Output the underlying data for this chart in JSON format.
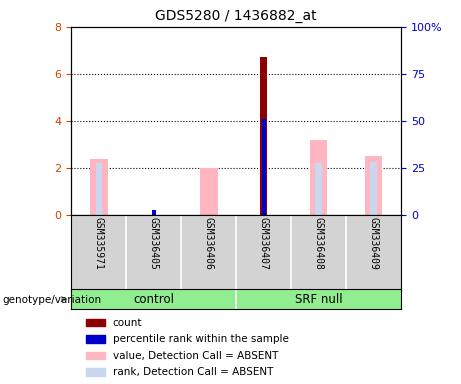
{
  "title": "GDS5280 / 1436882_at",
  "samples": [
    "GSM335971",
    "GSM336405",
    "GSM336406",
    "GSM336407",
    "GSM336408",
    "GSM336409"
  ],
  "count_values": [
    0,
    0,
    0,
    6.7,
    0,
    0
  ],
  "percentile_values": [
    0,
    0.2,
    0,
    4.1,
    0,
    0
  ],
  "pink_values": [
    2.4,
    0,
    2.0,
    0,
    3.2,
    2.5
  ],
  "blue_values": [
    2.2,
    0,
    0,
    0,
    2.2,
    2.25
  ],
  "count_color": "#8B0000",
  "percentile_color": "#0000CC",
  "pink_color": "#FFB6C1",
  "blue_color": "#C8D8F0",
  "ylim": [
    0,
    8
  ],
  "yticks": [
    0,
    2,
    4,
    6,
    8
  ],
  "y2ticks": [
    0,
    25,
    50,
    75,
    100
  ],
  "y2ticklabels": [
    "0",
    "25",
    "50",
    "75",
    "100%"
  ],
  "ytick_color": "#CC4400",
  "y2tick_color": "#0000CC",
  "bg_color": "#D3D3D3",
  "group_color": "#90EE90",
  "legend_items": [
    {
      "label": "count",
      "color": "#8B0000"
    },
    {
      "label": "percentile rank within the sample",
      "color": "#0000CC"
    },
    {
      "label": "value, Detection Call = ABSENT",
      "color": "#FFB6C1"
    },
    {
      "label": "rank, Detection Call = ABSENT",
      "color": "#C8D8F0"
    }
  ],
  "genotype_label": "genotype/variation"
}
